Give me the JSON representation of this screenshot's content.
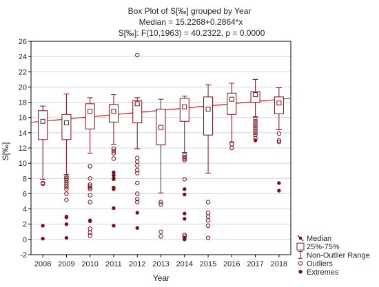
{
  "chart_data": {
    "type": "box",
    "title": "Box Plot of S[‰] grouped by  Year",
    "subtitle": "Median = 15.2268+0.2864*x",
    "subtitle2": "S[‰]:   F(10,1963) = 40.2322, p = 0.0000",
    "xlabel": "Year",
    "ylabel": "S[‰]",
    "ylim": [
      -2,
      26
    ],
    "yticks": [
      -2,
      0,
      2,
      4,
      6,
      8,
      10,
      12,
      14,
      16,
      18,
      20,
      22,
      24,
      26
    ],
    "categories": [
      "2008",
      "2009",
      "2010",
      "2011",
      "2012",
      "2013",
      "2014",
      "2015",
      "2016",
      "2017",
      "2018"
    ],
    "series": [
      {
        "category": "2008",
        "median": 15.5,
        "q1": 13.1,
        "q3": 16.9,
        "whisker_low": 7.9,
        "whisker_high": 17.5,
        "outliers": [
          7.4,
          7.3
        ],
        "extremes": [
          1.8,
          0.1
        ]
      },
      {
        "category": "2009",
        "median": 15.3,
        "q1": 13.1,
        "q3": 16.4,
        "whisker_low": 8.5,
        "whisker_high": 19.1,
        "outliers": [
          8.2,
          8.0,
          7.8,
          7.5,
          7.2,
          6.9,
          6.6,
          6.0,
          5.2
        ],
        "extremes": [
          3.0,
          2.9,
          2.0,
          0.2
        ]
      },
      {
        "category": "2010",
        "median": 16.8,
        "q1": 14.5,
        "q3": 17.8,
        "whisker_low": 11.3,
        "whisker_high": 18.6,
        "outliers": [
          9.6,
          8.0,
          7.2,
          7.0,
          6.8,
          6.6,
          5.8,
          4.9,
          1.4,
          0.9,
          0.5
        ],
        "extremes": [
          2.5,
          2.4
        ]
      },
      {
        "category": "2011",
        "median": 16.8,
        "q1": 15.4,
        "q3": 17.7,
        "whisker_low": 12.5,
        "whisker_high": 19.0,
        "outliers": [
          11.9,
          11.6,
          11.3,
          10.6
        ],
        "extremes": [
          8.8,
          8.4,
          8.0,
          7.9,
          6.8,
          6.6,
          4.1,
          1.8
        ]
      },
      {
        "category": "2012",
        "median": 17.8,
        "q1": 15.3,
        "q3": 18.2,
        "whisker_low": 11.9,
        "whisker_high": 18.6,
        "outliers": [
          24.2,
          10.7,
          10.2,
          9.7,
          9.1,
          8.7,
          7.4,
          6.0,
          5.3,
          4.9
        ],
        "extremes": [
          3.5,
          1.5
        ]
      },
      {
        "category": "2013",
        "median": 14.7,
        "q1": 12.4,
        "q3": 17.1,
        "whisker_low": 6.1,
        "whisker_high": 18.4,
        "outliers": [
          4.9,
          4.6,
          1.0,
          0.4
        ],
        "extremes": []
      },
      {
        "category": "2014",
        "median": 17.4,
        "q1": 15.5,
        "q3": 18.5,
        "whisker_low": 11.4,
        "whisker_high": 18.8,
        "outliers": [
          11.1,
          10.8,
          10.6,
          10.4,
          7.9,
          0.6,
          0.4
        ],
        "extremes": [
          6.6,
          5.9,
          3.4,
          2.7,
          0.2,
          0.1,
          0.0
        ]
      },
      {
        "category": "2015",
        "median": 17.1,
        "q1": 13.7,
        "q3": 18.7,
        "whisker_low": 8.7,
        "whisker_high": 20.3,
        "outliers": [
          4.9,
          3.5,
          3.0,
          2.5,
          1.8,
          0.2
        ],
        "extremes": []
      },
      {
        "category": "2016",
        "median": 18.4,
        "q1": 16.4,
        "q3": 19.2,
        "whisker_low": 12.8,
        "whisker_high": 20.5,
        "outliers": [
          12.5,
          12.0
        ],
        "extremes": []
      },
      {
        "category": "2017",
        "median": 19.0,
        "q1": 18.0,
        "q3": 19.4,
        "whisker_low": 16.1,
        "whisker_high": 21.0,
        "outliers": [
          15.8,
          15.5,
          15.2,
          14.9,
          14.6,
          14.3,
          14.0,
          13.7,
          13.3
        ],
        "extremes": [
          13.0
        ]
      },
      {
        "category": "2018",
        "median": 17.9,
        "q1": 16.5,
        "q3": 18.7,
        "whisker_low": 14.4,
        "whisker_high": 19.9,
        "outliers": [
          13.9,
          13.0,
          12.8
        ],
        "extremes": [
          7.4,
          6.4
        ]
      }
    ],
    "trend_line": {
      "intercept": 15.2268,
      "slope": 0.2864
    },
    "legend": {
      "position": "bottom-right",
      "items": [
        {
          "key": "median",
          "label": "Median"
        },
        {
          "key": "box",
          "label": "25%-75%"
        },
        {
          "key": "whisker",
          "label": "Non-Outlier Range"
        },
        {
          "key": "outlier",
          "label": "Outliers"
        },
        {
          "key": "extreme",
          "label": "Extremes"
        }
      ]
    },
    "colors": {
      "box": "#7a1018",
      "trend": "#e8141e",
      "grid": "#d4d4d4",
      "axis": "#000000"
    },
    "grid": true
  }
}
